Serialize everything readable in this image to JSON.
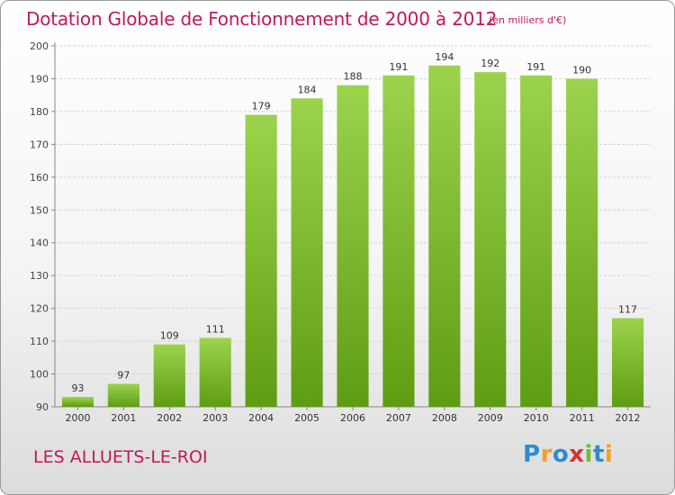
{
  "title": "Dotation Globale de Fonctionnement de 2000 à 2012",
  "unit_note": "(en milliers d'€)",
  "commune": "LES ALLUETS-LE-ROI",
  "logo": {
    "letters": [
      "P",
      "r",
      "o",
      "x",
      "i",
      "t",
      "i"
    ],
    "colors": [
      "#2e8bd1",
      "#f5a020",
      "#2e8bd1",
      "#d6322e",
      "#6fbf2e",
      "#2e8bd1",
      "#f5a020"
    ]
  },
  "colors": {
    "bar_top": "#9bd34d",
    "bar_bottom": "#5e9d13",
    "accent": "#c2185b"
  },
  "chart_data": {
    "type": "bar",
    "title": "Dotation Globale de Fonctionnement de 2000 à 2012",
    "categories": [
      "2000",
      "2001",
      "2002",
      "2003",
      "2004",
      "2005",
      "2006",
      "2007",
      "2008",
      "2009",
      "2010",
      "2011",
      "2012"
    ],
    "values": [
      93,
      97,
      109,
      111,
      179,
      184,
      188,
      191,
      194,
      192,
      191,
      190,
      117
    ],
    "ylim": [
      90,
      200
    ],
    "yticks": [
      90,
      100,
      110,
      120,
      130,
      140,
      150,
      160,
      170,
      180,
      190,
      200
    ],
    "grid": true,
    "xlabel": "",
    "ylabel": ""
  }
}
